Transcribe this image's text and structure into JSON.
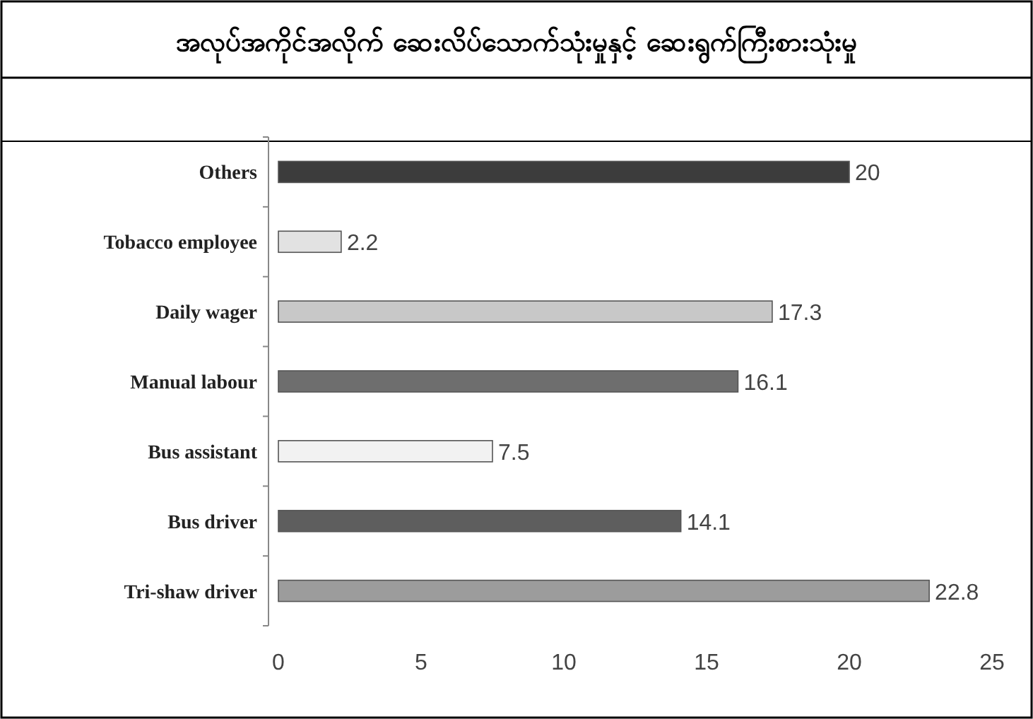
{
  "chart_data": {
    "type": "bar",
    "orientation": "horizontal",
    "title": "အလုပ်အကိုင်အလိုက် ဆေးလိပ်သောက်သုံးမှုနှင့် ဆေးရွက်ကြီးစားသုံးမှု",
    "categories": [
      "Others",
      "Tobacco employee",
      "Daily wager",
      "Manual labour",
      "Bus assistant",
      "Bus driver",
      "Tri-shaw driver"
    ],
    "values": [
      20,
      2.2,
      17.3,
      16.1,
      7.5,
      14.1,
      22.8
    ],
    "colors": [
      "#3c3c3c",
      "#e2e2e2",
      "#c8c8c8",
      "#6e6e6e",
      "#f2f2f2",
      "#5e5e5e",
      "#9c9c9c"
    ],
    "xlim": [
      0,
      25
    ],
    "xticks": [
      0,
      5,
      10,
      15,
      20,
      25
    ],
    "data_labels": true,
    "grid": false
  }
}
